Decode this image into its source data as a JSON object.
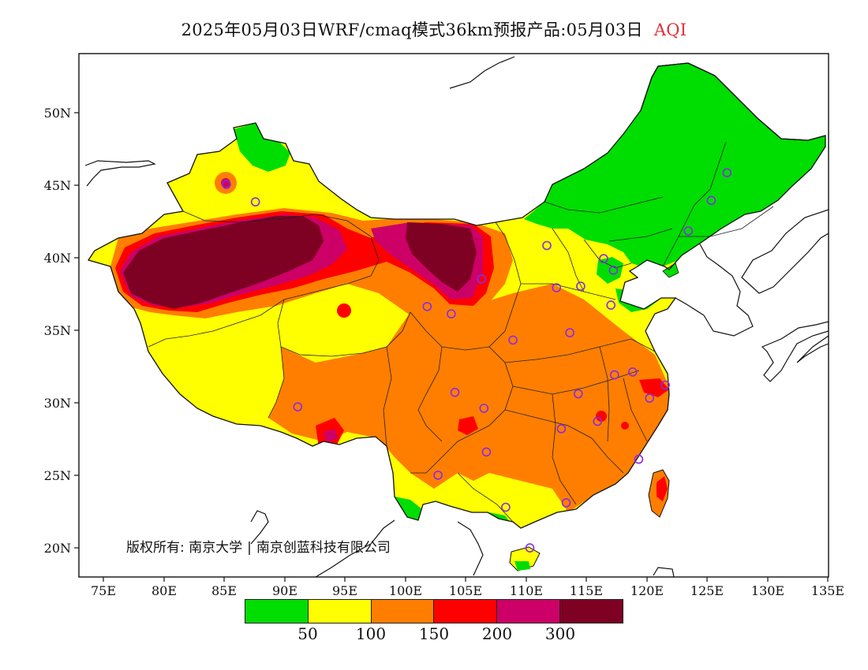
{
  "title": {
    "text": "2025年05月03日WRF/cmaq模式36km预报产品:05月03日",
    "variable": "AQI"
  },
  "credit": {
    "prefix": "版权所有:",
    "org1": "南京大学",
    "separator": "|",
    "org2": "南京创蓝科技有限公司"
  },
  "axes": {
    "x_ticks": [
      "75E",
      "80E",
      "85E",
      "90E",
      "95E",
      "100E",
      "105E",
      "110E",
      "115E",
      "120E",
      "125E",
      "130E",
      "135E"
    ],
    "y_ticks": [
      "50N",
      "45N",
      "40N",
      "35N",
      "30N",
      "25N",
      "20N"
    ]
  },
  "legend": {
    "colors": [
      "#00dd00",
      "#ffff00",
      "#ff7e00",
      "#ff0000",
      "#cc0066",
      "#7e0023"
    ],
    "labels": [
      "50",
      "100",
      "150",
      "200",
      "300"
    ]
  },
  "colors": {
    "good": "#00dd00",
    "moderate": "#ffff00",
    "usg": "#ff7e00",
    "unhealthy": "#ff0000",
    "very_unhealthy": "#cc0066",
    "hazardous": "#7e0023",
    "station": "#8a2be2"
  },
  "map_data": {
    "extent": {
      "lon": [
        73,
        135
      ],
      "lat": [
        18,
        54
      ]
    },
    "stations": [
      {
        "lon": 87.6,
        "lat": 43.8
      },
      {
        "lon": 91.1,
        "lat": 29.7
      },
      {
        "lon": 101.8,
        "lat": 36.6
      },
      {
        "lon": 103.8,
        "lat": 36.1
      },
      {
        "lon": 106.3,
        "lat": 38.5
      },
      {
        "lon": 111.7,
        "lat": 40.8
      },
      {
        "lon": 112.5,
        "lat": 37.9
      },
      {
        "lon": 114.5,
        "lat": 38.0
      },
      {
        "lon": 116.4,
        "lat": 39.9
      },
      {
        "lon": 117.2,
        "lat": 39.1
      },
      {
        "lon": 117.0,
        "lat": 36.7
      },
      {
        "lon": 113.6,
        "lat": 34.8
      },
      {
        "lon": 108.9,
        "lat": 34.3
      },
      {
        "lon": 104.1,
        "lat": 30.7
      },
      {
        "lon": 106.5,
        "lat": 29.6
      },
      {
        "lon": 106.7,
        "lat": 26.6
      },
      {
        "lon": 102.7,
        "lat": 25.0
      },
      {
        "lon": 108.3,
        "lat": 22.8
      },
      {
        "lon": 113.3,
        "lat": 23.1
      },
      {
        "lon": 110.3,
        "lat": 20.0
      },
      {
        "lon": 112.9,
        "lat": 28.2
      },
      {
        "lon": 114.3,
        "lat": 30.6
      },
      {
        "lon": 115.9,
        "lat": 28.7
      },
      {
        "lon": 117.3,
        "lat": 31.9
      },
      {
        "lon": 118.8,
        "lat": 32.1
      },
      {
        "lon": 120.2,
        "lat": 30.3
      },
      {
        "lon": 121.5,
        "lat": 31.2
      },
      {
        "lon": 119.3,
        "lat": 26.1
      },
      {
        "lon": 123.4,
        "lat": 41.8
      },
      {
        "lon": 125.3,
        "lat": 43.9
      },
      {
        "lon": 126.6,
        "lat": 45.8
      },
      {
        "lon": 85.2,
        "lat": 45.0
      }
    ]
  }
}
